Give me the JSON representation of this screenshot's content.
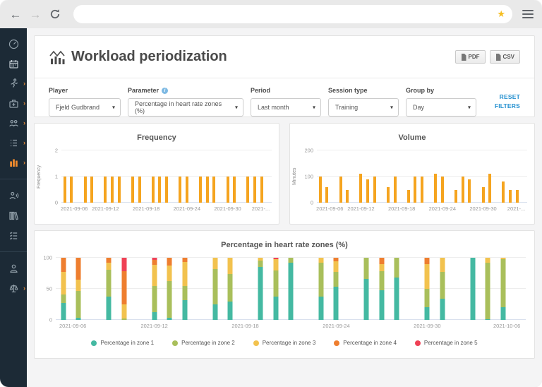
{
  "browser": {
    "back_icon": "←",
    "forward_icon": "→",
    "refresh_icon": "refresh-icon",
    "address_value": "",
    "star_icon": "★"
  },
  "sidebar": {
    "bg_color": "#1c2a36",
    "active_color": "#ef8b2e",
    "items": [
      {
        "icon": "dashboard-gauge-icon",
        "chevron": false,
        "active": false
      },
      {
        "icon": "calendar-icon",
        "chevron": false,
        "active": false
      },
      {
        "icon": "athlete-runner-icon",
        "chevron": true,
        "active": false
      },
      {
        "icon": "medical-kit-icon",
        "chevron": true,
        "active": false
      },
      {
        "icon": "team-icon",
        "chevron": true,
        "active": false
      },
      {
        "icon": "survey-list-icon",
        "chevron": true,
        "active": false
      },
      {
        "icon": "statistics-bars-icon",
        "chevron": true,
        "active": true
      },
      {
        "icon": "communication-icon",
        "chevron": false,
        "active": false
      },
      {
        "icon": "library-icon",
        "chevron": false,
        "active": false
      },
      {
        "icon": "checklist-icon",
        "chevron": false,
        "active": false
      },
      {
        "icon": "profile-icon",
        "chevron": false,
        "active": false
      },
      {
        "icon": "scales-icon",
        "chevron": true,
        "active": false
      }
    ]
  },
  "header": {
    "title": "Workload periodization",
    "pdf_button": "PDF",
    "csv_button": "CSV"
  },
  "filters": {
    "groups": [
      {
        "label": "Player",
        "value": "Fjeld Gudbrand"
      },
      {
        "label": "Parameter",
        "value": "Percentage in heart rate zones (%)",
        "info_icon": "info-icon"
      },
      {
        "label": "Period",
        "value": "Last month"
      },
      {
        "label": "Session type",
        "value": "Training"
      },
      {
        "label": "Group by",
        "value": "Day"
      }
    ],
    "reset_label": "RESET FILTERS"
  },
  "chart_data": [
    {
      "type": "bar",
      "title": "Frequency",
      "ylabel": "Frequency",
      "ylim": [
        0,
        2
      ],
      "yticks": [
        0,
        1,
        2
      ],
      "bar_color": "#f5a41f",
      "days_span": 31,
      "x": [
        "2021-09-06",
        "2021-09-07",
        "2021-09-09",
        "2021-09-10",
        "2021-09-12",
        "2021-09-13",
        "2021-09-14",
        "2021-09-16",
        "2021-09-17",
        "2021-09-19",
        "2021-09-20",
        "2021-09-21",
        "2021-09-23",
        "2021-09-24",
        "2021-09-26",
        "2021-09-27",
        "2021-09-28",
        "2021-09-30",
        "2021-10-01",
        "2021-10-03",
        "2021-10-04",
        "2021-10-05"
      ],
      "day_index": [
        0,
        1,
        3,
        4,
        6,
        7,
        8,
        10,
        11,
        13,
        14,
        15,
        17,
        18,
        20,
        21,
        22,
        24,
        25,
        27,
        28,
        29
      ],
      "values": [
        1,
        1,
        1,
        1,
        1,
        1,
        1,
        1,
        1,
        1,
        1,
        1,
        1,
        1,
        1,
        1,
        1,
        1,
        1,
        1,
        1,
        1
      ],
      "x_ticks": [
        {
          "day": 0,
          "label": "2021-09-06"
        },
        {
          "day": 6,
          "label": "2021-09-12"
        },
        {
          "day": 12,
          "label": "2021-09-18"
        },
        {
          "day": 18,
          "label": "2021-09-24"
        },
        {
          "day": 24,
          "label": "2021-09-30"
        },
        {
          "day": 30,
          "label": "2021-..."
        }
      ]
    },
    {
      "type": "bar",
      "title": "Volume",
      "ylabel": "Minutes",
      "ylim": [
        0,
        200
      ],
      "yticks": [
        0,
        100,
        200
      ],
      "bar_color": "#f5a41f",
      "days_span": 31,
      "x": [
        "2021-09-06",
        "2021-09-07",
        "2021-09-09",
        "2021-09-10",
        "2021-09-12",
        "2021-09-13",
        "2021-09-14",
        "2021-09-16",
        "2021-09-17",
        "2021-09-19",
        "2021-09-20",
        "2021-09-21",
        "2021-09-23",
        "2021-09-24",
        "2021-09-26",
        "2021-09-27",
        "2021-09-28",
        "2021-09-30",
        "2021-10-01",
        "2021-10-03",
        "2021-10-04",
        "2021-10-05"
      ],
      "day_index": [
        0,
        1,
        3,
        4,
        6,
        7,
        8,
        10,
        11,
        13,
        14,
        15,
        17,
        18,
        20,
        21,
        22,
        24,
        25,
        27,
        28,
        29
      ],
      "values": [
        100,
        60,
        100,
        50,
        110,
        90,
        100,
        60,
        100,
        50,
        100,
        100,
        110,
        100,
        50,
        100,
        90,
        60,
        110,
        80,
        50,
        50
      ],
      "x_ticks": [
        {
          "day": 0,
          "label": "2021-09-06"
        },
        {
          "day": 6,
          "label": "2021-09-12"
        },
        {
          "day": 12,
          "label": "2021-09-18"
        },
        {
          "day": 18,
          "label": "2021-09-24"
        },
        {
          "day": 24,
          "label": "2021-09-30"
        },
        {
          "day": 30,
          "label": "2021-..."
        }
      ]
    },
    {
      "type": "stacked-bar",
      "title": "Percentage in heart rate zones (%)",
      "ylabel": "",
      "ylim": [
        0,
        100
      ],
      "yticks": [
        0,
        50,
        100
      ],
      "days_span": 31,
      "legend": true,
      "legend_position": "bottom",
      "categories": [
        "2021-09-06",
        "2021-09-07",
        "2021-09-09",
        "2021-09-10",
        "2021-09-12",
        "2021-09-13",
        "2021-09-14",
        "2021-09-16",
        "2021-09-17",
        "2021-09-19",
        "2021-09-20",
        "2021-09-21",
        "2021-09-23",
        "2021-09-24",
        "2021-09-26",
        "2021-09-27",
        "2021-09-28",
        "2021-09-30",
        "2021-10-01",
        "2021-10-03",
        "2021-10-04",
        "2021-10-05"
      ],
      "day_index": [
        0,
        1,
        3,
        4,
        6,
        7,
        8,
        10,
        11,
        13,
        14,
        15,
        17,
        18,
        20,
        21,
        22,
        24,
        25,
        27,
        28,
        29
      ],
      "series": [
        {
          "name": "Percentage in zone 1",
          "color": "#44b9a2",
          "values": [
            27,
            3,
            38,
            0,
            13,
            3,
            32,
            25,
            30,
            85,
            37,
            92,
            37,
            53,
            66,
            48,
            68,
            20,
            34,
            100,
            1,
            20
          ]
        },
        {
          "name": "Percentage in zone 2",
          "color": "#a9bf5b",
          "values": [
            14,
            44,
            43,
            2,
            41,
            60,
            22,
            57,
            44,
            11,
            43,
            8,
            55,
            24,
            34,
            30,
            32,
            30,
            43,
            0,
            91,
            78
          ]
        },
        {
          "name": "Percentage in zone 3",
          "color": "#f2c24e",
          "values": [
            36,
            18,
            11,
            23,
            35,
            24,
            39,
            18,
            26,
            4,
            18,
            0,
            8,
            17,
            0,
            12,
            0,
            40,
            23,
            0,
            8,
            2
          ]
        },
        {
          "name": "Percentage in zone 4",
          "color": "#ee7e2f",
          "values": [
            23,
            35,
            8,
            53,
            8,
            13,
            7,
            0,
            0,
            0,
            0,
            0,
            0,
            6,
            0,
            10,
            0,
            10,
            0,
            0,
            0,
            0
          ]
        },
        {
          "name": "Percentage in zone 5",
          "color": "#ef4155",
          "values": [
            0,
            0,
            0,
            22,
            3,
            0,
            0,
            0,
            0,
            0,
            2,
            0,
            0,
            0,
            0,
            0,
            0,
            0,
            0,
            0,
            0,
            0
          ]
        }
      ],
      "x_ticks": [
        {
          "day": 0,
          "label": "2021-09-06"
        },
        {
          "day": 6,
          "label": "2021-09-12"
        },
        {
          "day": 12,
          "label": "2021-09-18"
        },
        {
          "day": 18,
          "label": "2021-09-24"
        },
        {
          "day": 24,
          "label": "2021-09-30"
        },
        {
          "day": 30,
          "label": "2021-10-06"
        }
      ]
    }
  ]
}
